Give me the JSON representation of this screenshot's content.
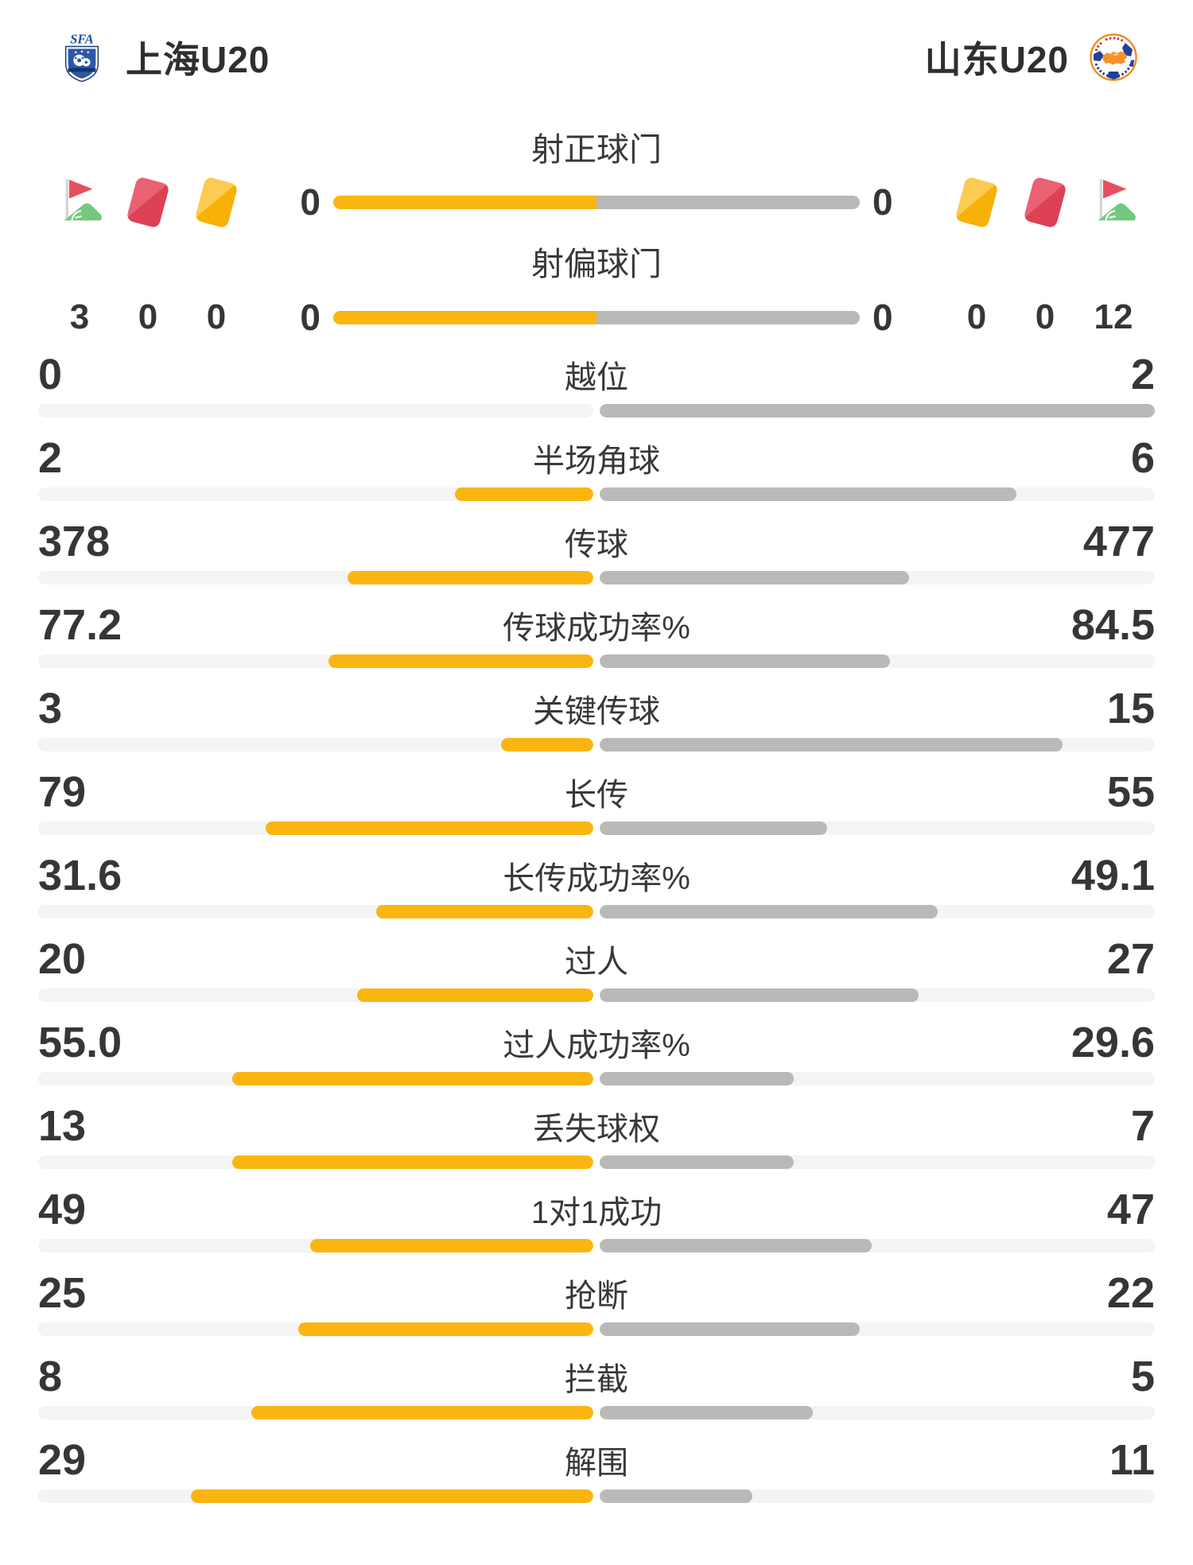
{
  "header": {
    "home_name": "上海U20",
    "away_name": "山东U20",
    "home_badge_text": "SFA"
  },
  "discipline": {
    "home": {
      "corner_kicks": "3",
      "red_cards": "0",
      "yellow_cards": "0"
    },
    "away": {
      "yellow_cards": "0",
      "red_cards": "0",
      "corner_kicks": "12"
    }
  },
  "shot_stats": [
    {
      "label": "射正球门",
      "home": "0",
      "away": "0"
    },
    {
      "label": "射偏球门",
      "home": "0",
      "away": "0"
    }
  ],
  "stats": [
    {
      "label": "越位",
      "home": "0",
      "away": "2"
    },
    {
      "label": "半场角球",
      "home": "2",
      "away": "6"
    },
    {
      "label": "传球",
      "home": "378",
      "away": "477"
    },
    {
      "label": "传球成功率%",
      "home": "77.2",
      "away": "84.5"
    },
    {
      "label": "关键传球",
      "home": "3",
      "away": "15"
    },
    {
      "label": "长传",
      "home": "79",
      "away": "55"
    },
    {
      "label": "长传成功率%",
      "home": "31.6",
      "away": "49.1"
    },
    {
      "label": "过人",
      "home": "20",
      "away": "27"
    },
    {
      "label": "过人成功率%",
      "home": "55.0",
      "away": "29.6"
    },
    {
      "label": "丢失球权",
      "home": "13",
      "away": "7"
    },
    {
      "label": "1对1成功",
      "home": "49",
      "away": "47"
    },
    {
      "label": "抢断",
      "home": "25",
      "away": "22"
    },
    {
      "label": "拦截",
      "home": "8",
      "away": "5"
    },
    {
      "label": "解围",
      "home": "29",
      "away": "11"
    }
  ],
  "colors": {
    "home_fill": "#fbb511",
    "away_fill": "#b9b9b9",
    "empty_track": "#f4f4f4",
    "red_card": "#dc4156",
    "yellow_card": "#f7b108",
    "flag_green": "#74c97c",
    "flag_red": "#e84f5e"
  }
}
